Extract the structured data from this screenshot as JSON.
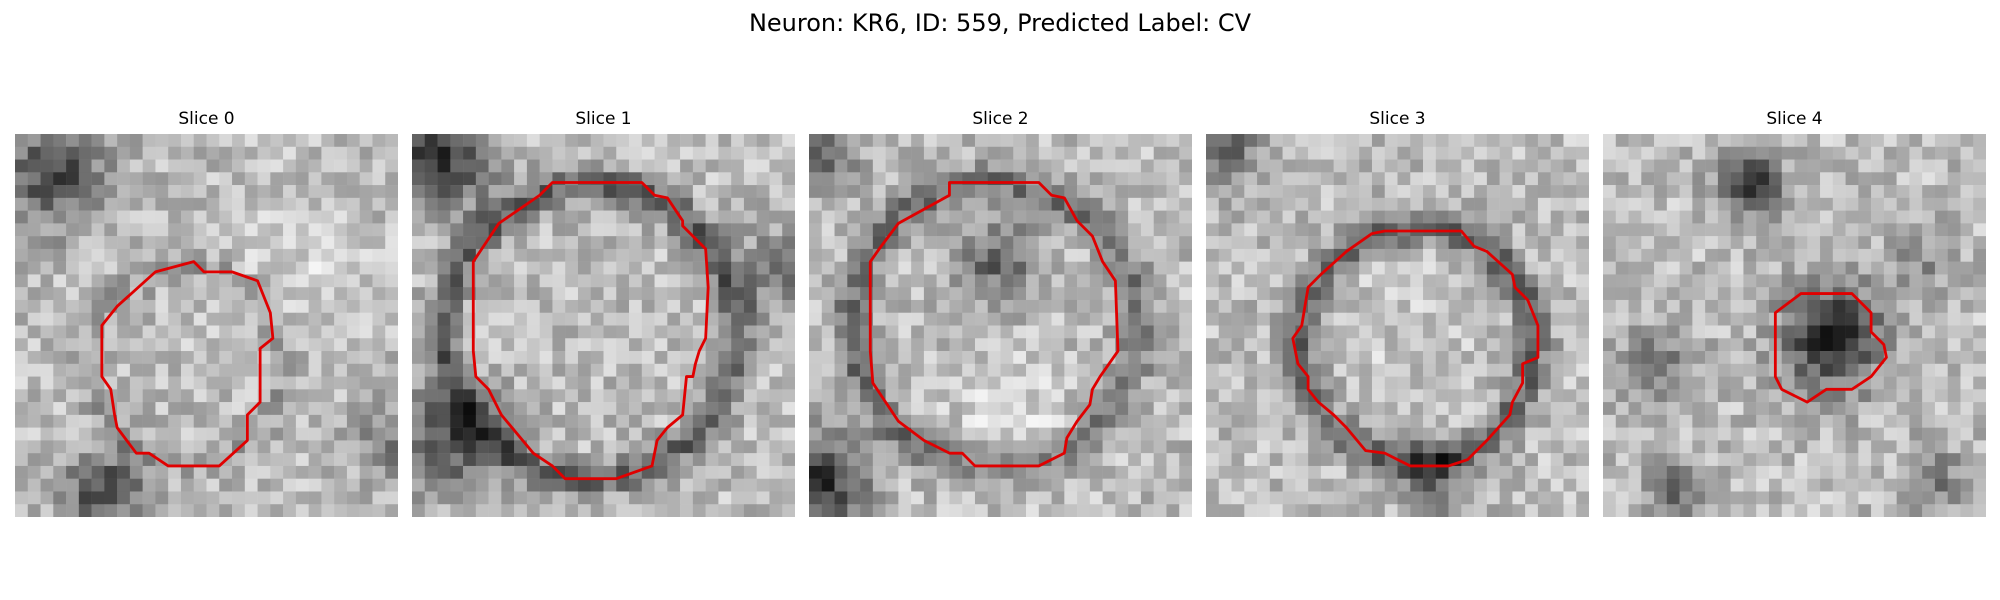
{
  "figure": {
    "title": "Neuron: KR6, ID: 559, Predicted Label: CV"
  },
  "colors": {
    "contour": "#e00000",
    "background": "#ffffff"
  },
  "panels": [
    {
      "title": "Slice 0"
    },
    {
      "title": "Slice 1"
    },
    {
      "title": "Slice 2"
    },
    {
      "title": "Slice 3"
    },
    {
      "title": "Slice 4"
    }
  ]
}
